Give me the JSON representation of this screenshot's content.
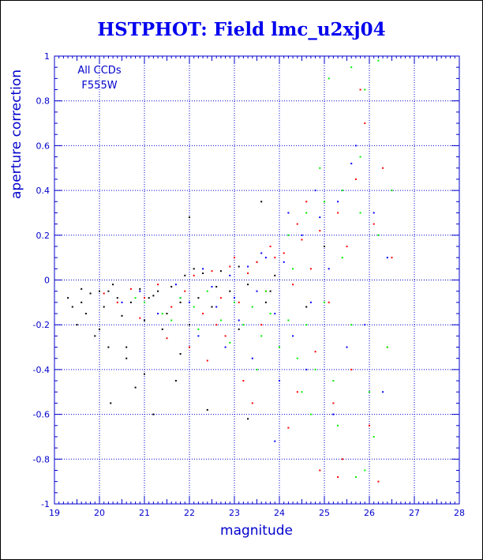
{
  "chart_data": {
    "type": "scatter",
    "title": "HSTPHOT: Field lmc_u2xj04",
    "xlabel": "magnitude",
    "ylabel": "aperture correction",
    "annotations": [
      "All CCDs",
      "F555W"
    ],
    "xlim": [
      19,
      28
    ],
    "ylim": [
      -1,
      1
    ],
    "xticks": [
      19,
      20,
      21,
      22,
      23,
      24,
      25,
      26,
      27,
      28
    ],
    "yticks": [
      -1,
      -0.8,
      -0.6,
      -0.4,
      -0.2,
      0,
      0.2,
      0.4,
      0.6,
      0.8,
      1
    ],
    "grid": true,
    "colors": {
      "axis": "#0000cc",
      "title": "#0000ee",
      "grid": "#0000cc"
    },
    "series": [
      {
        "color": "#000000",
        "points": [
          [
            19.3,
            -0.08
          ],
          [
            19.4,
            -0.12
          ],
          [
            19.5,
            -0.2
          ],
          [
            19.6,
            -0.1
          ],
          [
            19.7,
            -0.15
          ],
          [
            19.8,
            -0.06
          ],
          [
            19.9,
            -0.25
          ],
          [
            20.0,
            -0.05
          ],
          [
            20.1,
            -0.12
          ],
          [
            20.2,
            -0.3
          ],
          [
            20.25,
            -0.55
          ],
          [
            20.3,
            -0.02
          ],
          [
            20.4,
            -0.08
          ],
          [
            20.5,
            -0.16
          ],
          [
            20.6,
            -0.35
          ],
          [
            20.7,
            -0.1
          ],
          [
            20.8,
            -0.48
          ],
          [
            20.9,
            -0.04
          ],
          [
            21.0,
            -0.18
          ],
          [
            21.1,
            -0.08
          ],
          [
            21.2,
            -0.6
          ],
          [
            21.3,
            -0.05
          ],
          [
            21.4,
            -0.22
          ],
          [
            21.5,
            -0.15
          ],
          [
            21.6,
            -0.03
          ],
          [
            21.7,
            -0.45
          ],
          [
            21.8,
            -0.1
          ],
          [
            21.9,
            0.02
          ],
          [
            22.0,
            -0.2
          ],
          [
            22.1,
            0.05
          ],
          [
            22.2,
            -0.08
          ],
          [
            22.3,
            0.03
          ],
          [
            22.5,
            -0.12
          ],
          [
            22.7,
            0.04
          ],
          [
            22.9,
            -0.05
          ],
          [
            23.1,
            0.06
          ],
          [
            23.3,
            -0.02
          ],
          [
            23.5,
            0.08
          ],
          [
            23.7,
            -0.1
          ],
          [
            23.9,
            0.02
          ],
          [
            21.0,
            -0.42
          ],
          [
            20.6,
            -0.3
          ],
          [
            22.4,
            -0.58
          ],
          [
            23.3,
            -0.62
          ],
          [
            19.6,
            -0.04
          ],
          [
            20.0,
            -0.22
          ],
          [
            21.2,
            -0.07
          ],
          [
            22.6,
            -0.03
          ],
          [
            22.0,
            0.28
          ],
          [
            23.6,
            0.35
          ],
          [
            24.6,
            -0.12
          ],
          [
            25.0,
            0.15
          ],
          [
            23.1,
            -0.22
          ],
          [
            21.8,
            -0.33
          ],
          [
            20.2,
            -0.05
          ],
          [
            23.8,
            -0.05
          ]
        ]
      },
      {
        "color": "#ff0000",
        "points": [
          [
            20.1,
            -0.06
          ],
          [
            20.4,
            -0.1
          ],
          [
            20.7,
            -0.04
          ],
          [
            21.0,
            -0.08
          ],
          [
            21.3,
            -0.02
          ],
          [
            21.6,
            -0.12
          ],
          [
            21.9,
            -0.05
          ],
          [
            22.1,
            0.02
          ],
          [
            22.3,
            -0.15
          ],
          [
            22.5,
            0.04
          ],
          [
            22.7,
            -0.08
          ],
          [
            22.9,
            0.06
          ],
          [
            23.1,
            -0.1
          ],
          [
            23.3,
            0.03
          ],
          [
            23.5,
            0.08
          ],
          [
            23.7,
            -0.05
          ],
          [
            23.9,
            0.1
          ],
          [
            24.1,
            0.12
          ],
          [
            24.3,
            -0.02
          ],
          [
            24.5,
            0.18
          ],
          [
            24.7,
            0.05
          ],
          [
            24.9,
            0.22
          ],
          [
            25.1,
            -0.1
          ],
          [
            25.3,
            0.3
          ],
          [
            25.5,
            0.15
          ],
          [
            25.7,
            0.45
          ],
          [
            25.9,
            0.7
          ],
          [
            26.1,
            0.25
          ],
          [
            26.3,
            0.5
          ],
          [
            26.5,
            0.1
          ],
          [
            22.0,
            -0.3
          ],
          [
            22.4,
            -0.36
          ],
          [
            22.8,
            -0.25
          ],
          [
            23.2,
            -0.45
          ],
          [
            23.6,
            -0.2
          ],
          [
            24.0,
            -0.3
          ],
          [
            24.4,
            -0.5
          ],
          [
            24.8,
            -0.32
          ],
          [
            25.2,
            -0.55
          ],
          [
            25.6,
            -0.4
          ],
          [
            26.0,
            -0.65
          ],
          [
            26.4,
            -0.3
          ],
          [
            24.2,
            -0.66
          ],
          [
            25.4,
            -0.8
          ],
          [
            23.4,
            -0.55
          ],
          [
            26.2,
            -0.9
          ],
          [
            25.8,
            0.85
          ],
          [
            24.6,
            0.35
          ],
          [
            23.0,
            0.1
          ],
          [
            22.6,
            -0.2
          ],
          [
            21.5,
            -0.26
          ],
          [
            20.9,
            -0.17
          ],
          [
            24.9,
            -0.85
          ],
          [
            25.3,
            -0.88
          ],
          [
            23.8,
            0.15
          ],
          [
            24.4,
            0.25
          ]
        ]
      },
      {
        "color": "#0000ff",
        "points": [
          [
            20.5,
            -0.1
          ],
          [
            20.9,
            -0.05
          ],
          [
            21.3,
            -0.15
          ],
          [
            21.7,
            -0.02
          ],
          [
            22.0,
            -0.1
          ],
          [
            22.3,
            0.05
          ],
          [
            22.6,
            -0.12
          ],
          [
            22.9,
            0.02
          ],
          [
            23.1,
            -0.18
          ],
          [
            23.3,
            0.06
          ],
          [
            23.5,
            -0.05
          ],
          [
            23.7,
            0.1
          ],
          [
            23.9,
            -0.15
          ],
          [
            24.1,
            0.08
          ],
          [
            24.3,
            -0.25
          ],
          [
            24.5,
            0.2
          ],
          [
            24.7,
            -0.1
          ],
          [
            24.9,
            0.28
          ],
          [
            25.1,
            0.05
          ],
          [
            25.3,
            0.35
          ],
          [
            25.5,
            -0.3
          ],
          [
            25.7,
            0.6
          ],
          [
            25.9,
            -0.2
          ],
          [
            26.1,
            0.3
          ],
          [
            26.3,
            -0.5
          ],
          [
            22.2,
            -0.25
          ],
          [
            22.8,
            -0.3
          ],
          [
            23.4,
            -0.35
          ],
          [
            24.0,
            -0.45
          ],
          [
            24.6,
            -0.4
          ],
          [
            25.2,
            -0.6
          ],
          [
            23.9,
            -0.72
          ],
          [
            21.8,
            -0.08
          ],
          [
            22.5,
            -0.03
          ],
          [
            23.6,
            0.12
          ],
          [
            24.8,
            0.4
          ],
          [
            25.6,
            0.52
          ],
          [
            26.4,
            0.1
          ],
          [
            24.2,
            0.3
          ],
          [
            23.0,
            -0.08
          ]
        ]
      },
      {
        "color": "#00ee00",
        "points": [
          [
            21.0,
            -0.1
          ],
          [
            21.4,
            -0.15
          ],
          [
            21.8,
            -0.08
          ],
          [
            22.1,
            -0.12
          ],
          [
            22.4,
            -0.05
          ],
          [
            22.7,
            -0.18
          ],
          [
            23.0,
            -0.1
          ],
          [
            23.2,
            -0.2
          ],
          [
            23.4,
            -0.12
          ],
          [
            23.6,
            -0.25
          ],
          [
            23.8,
            -0.15
          ],
          [
            24.0,
            -0.3
          ],
          [
            24.2,
            -0.18
          ],
          [
            24.4,
            -0.35
          ],
          [
            24.6,
            -0.2
          ],
          [
            24.8,
            -0.4
          ],
          [
            25.0,
            -0.1
          ],
          [
            25.2,
            -0.45
          ],
          [
            25.4,
            0.1
          ],
          [
            25.6,
            -0.2
          ],
          [
            25.8,
            0.3
          ],
          [
            26.0,
            -0.5
          ],
          [
            26.2,
            0.2
          ],
          [
            26.4,
            -0.3
          ],
          [
            24.2,
            0.2
          ],
          [
            24.6,
            0.3
          ],
          [
            25.0,
            0.35
          ],
          [
            25.4,
            0.4
          ],
          [
            25.8,
            0.55
          ],
          [
            25.6,
            0.95
          ],
          [
            26.2,
            0.98
          ],
          [
            25.1,
            0.9
          ],
          [
            24.9,
            0.5
          ],
          [
            25.9,
            0.85
          ],
          [
            26.5,
            0.4
          ],
          [
            24.5,
            -0.5
          ],
          [
            25.3,
            -0.65
          ],
          [
            26.1,
            -0.7
          ],
          [
            25.7,
            -0.88
          ],
          [
            24.3,
            0.05
          ],
          [
            23.7,
            -0.05
          ],
          [
            22.9,
            -0.28
          ],
          [
            22.2,
            -0.22
          ],
          [
            21.6,
            -0.18
          ],
          [
            20.8,
            -0.08
          ],
          [
            23.5,
            -0.4
          ],
          [
            24.7,
            -0.6
          ],
          [
            25.9,
            -0.85
          ]
        ]
      }
    ]
  }
}
